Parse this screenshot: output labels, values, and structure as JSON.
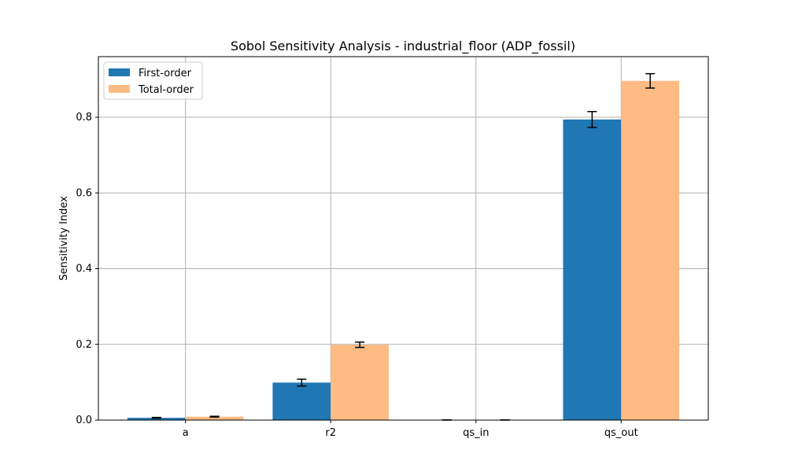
{
  "chart_data": {
    "type": "bar",
    "title": "Sobol Sensitivity Analysis - industrial_floor (ADP_fossil)",
    "xlabel": "",
    "ylabel": "Sensitivity Index",
    "categories": [
      "a",
      "r2",
      "qs_in",
      "qs_out"
    ],
    "series": [
      {
        "name": "First-order",
        "color": "#1f77b4",
        "values": [
          0.006,
          0.099,
          0.0,
          0.794
        ],
        "errors": [
          0.001,
          0.009,
          0.0005,
          0.021
        ]
      },
      {
        "name": "Total-order",
        "color": "#ffbb84",
        "values": [
          0.009,
          0.199,
          0.0,
          0.896
        ],
        "errors": [
          0.001,
          0.007,
          0.0005,
          0.019
        ]
      }
    ],
    "ylim": [
      0,
      0.96
    ],
    "yticks": [
      "0.0",
      "0.2",
      "0.4",
      "0.6",
      "0.8"
    ],
    "ytick_values": [
      0,
      0.2,
      0.4,
      0.6,
      0.8
    ],
    "grid": true,
    "legend_position": "upper-left"
  }
}
